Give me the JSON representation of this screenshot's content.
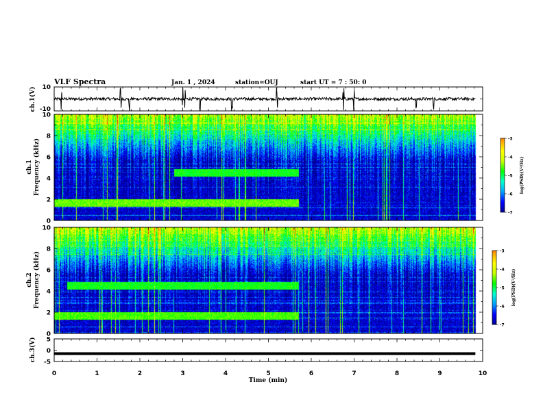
{
  "header": {
    "title": "VLF Spectra",
    "date": "Jan. 1 , 2024",
    "station": "station=OUJ",
    "start": "start UT =  7 : 50: 0"
  },
  "chart_data": [
    {
      "id": "ch1_waveform",
      "type": "line",
      "ylabel": "ch.1(V)",
      "ylim": [
        -10,
        10
      ],
      "yticks": [
        "10",
        "-10"
      ],
      "xlim": [
        0,
        10
      ],
      "baseline": 0,
      "description_level_V": 0.3,
      "spike_times_min": [
        0.17,
        1.55,
        1.75,
        3.0,
        3.05,
        3.4,
        4.15,
        5.2,
        6.75,
        7.0,
        8.45,
        8.85
      ]
    },
    {
      "id": "ch1_spectrogram",
      "type": "heatmap",
      "ylabel": "ch.1\nFrequency (kHz)",
      "ylim": [
        0,
        10
      ],
      "yticks": [
        "0",
        "2",
        "4",
        "6",
        "8",
        "10"
      ],
      "xlim": [
        0,
        10
      ],
      "data_extent_min": [
        0,
        9.83
      ],
      "colorbar": {
        "label": "log(PSD)(V²/Hz)",
        "range": [
          -7,
          -3
        ],
        "ticks": [
          "-3",
          "-4",
          "-5",
          "-6",
          "-7"
        ]
      },
      "band_features": [
        {
          "freq_khz": 1.7,
          "until_min": 5.7,
          "level": -4.5
        },
        {
          "freq_khz": 4.5,
          "from_min": 2.8,
          "until_min": 5.7,
          "level": -4.8
        }
      ]
    },
    {
      "id": "ch2_spectrogram",
      "type": "heatmap",
      "ylabel": "ch.2\nFrequency (kHz)",
      "ylim": [
        0,
        10
      ],
      "yticks": [
        "0",
        "2",
        "4",
        "6",
        "8",
        "10"
      ],
      "xlim": [
        0,
        10
      ],
      "data_extent_min": [
        0,
        9.83
      ],
      "colorbar": {
        "label": "log(PSD)(V²/Hz)",
        "range": [
          -7,
          -3
        ],
        "ticks": [
          "-3",
          "-4",
          "-5",
          "-6",
          "-7"
        ]
      },
      "band_features": [
        {
          "freq_khz": 1.7,
          "until_min": 5.7,
          "level": -4.6
        },
        {
          "freq_khz": 4.5,
          "from_min": 0.3,
          "until_min": 5.7,
          "level": -4.8
        }
      ]
    },
    {
      "id": "ch3_waveform",
      "type": "line",
      "ylabel": "ch.3(V)",
      "ylim": [
        -5,
        5
      ],
      "yticks": [
        "5",
        "0",
        "-5"
      ],
      "xlim": [
        0,
        10
      ],
      "level_V": -1.5
    }
  ],
  "xaxis": {
    "label": "Time (min)",
    "ticks": [
      "0",
      "1",
      "2",
      "3",
      "4",
      "5",
      "6",
      "7",
      "8",
      "9",
      "10"
    ]
  },
  "colors": {
    "colormap": [
      "#00008c",
      "#0000ff",
      "#00a0ff",
      "#00ffd2",
      "#00ff00",
      "#c8ff00",
      "#ffff00",
      "#ffa000",
      "#ff0000",
      "#ffffff"
    ]
  }
}
